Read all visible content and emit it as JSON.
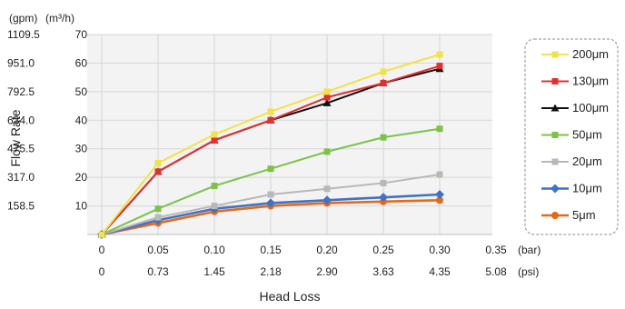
{
  "chart_data": {
    "type": "line",
    "ylabel": "Flow Rate",
    "xlabel": "Head Loss",
    "y_units": [
      "(gpm)",
      "(m³/h)"
    ],
    "x_units": [
      "(bar)",
      "(psi)"
    ],
    "x_bar_ticks": [
      "0",
      "0.05",
      "0.10",
      "0.15",
      "0.20",
      "0.25",
      "0.30",
      "0.35"
    ],
    "x_psi_ticks": [
      "0",
      "0.73",
      "1.45",
      "2.18",
      "2.90",
      "3.63",
      "4.35",
      "5.08"
    ],
    "y_m3h_ticks": [
      "10",
      "20",
      "30",
      "40",
      "50",
      "60",
      "70"
    ],
    "y_gpm_ticks": [
      "158.5",
      "317.0",
      "475.5",
      "634.0",
      "792.5",
      "951.0",
      "1109.5"
    ],
    "xlim": [
      0,
      0.35
    ],
    "ylim": [
      0,
      70
    ],
    "grid": true,
    "legend_position": "right",
    "x": [
      0,
      0.05,
      0.1,
      0.15,
      0.2,
      0.25,
      0.3
    ],
    "series": [
      {
        "name": "200μm",
        "color": "#f2e24a",
        "marker": "square",
        "values": [
          0,
          25,
          35,
          43,
          50,
          57,
          63
        ]
      },
      {
        "name": "130μm",
        "color": "#e03030",
        "marker": "square",
        "values": [
          0,
          22,
          33,
          40,
          48,
          53,
          59
        ]
      },
      {
        "name": "100μm",
        "color": "#111111",
        "marker": "triangle",
        "values": [
          0,
          22,
          33,
          40,
          46,
          53,
          58
        ]
      },
      {
        "name": "50μm",
        "color": "#7cc24a",
        "marker": "square",
        "values": [
          0,
          9,
          17,
          23,
          29,
          34,
          37
        ]
      },
      {
        "name": "20μm",
        "color": "#b8b8b8",
        "marker": "square",
        "values": [
          0,
          6,
          10,
          14,
          16,
          18,
          21
        ]
      },
      {
        "name": "10μm",
        "color": "#3f72c6",
        "marker": "diamond",
        "values": [
          0,
          5,
          9,
          11,
          12,
          13,
          14
        ]
      },
      {
        "name": "5μm",
        "color": "#e46a1a",
        "marker": "circle",
        "values": [
          0,
          4,
          8,
          10,
          11,
          11.5,
          12
        ]
      }
    ]
  }
}
